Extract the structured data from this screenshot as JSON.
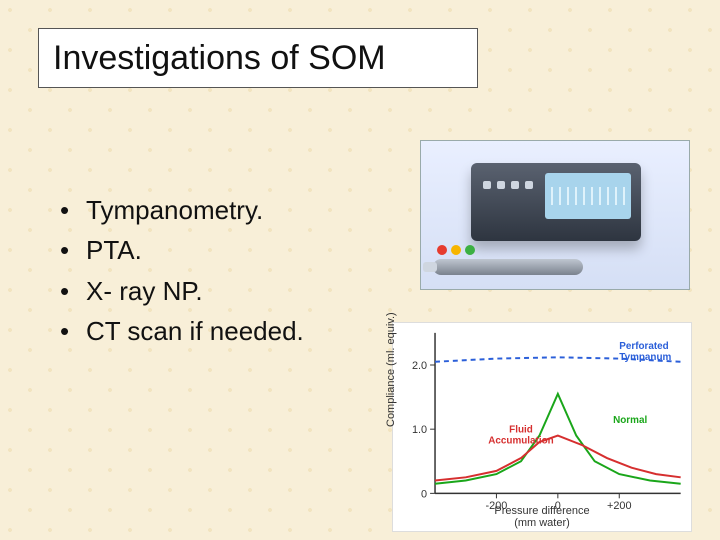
{
  "title": "Investigations of SOM",
  "bullets": [
    "Tympanometry.",
    "PTA.",
    "X- ray NP.",
    "CT scan if needed."
  ],
  "device": {
    "tip_colors": [
      "#e63b2e",
      "#f7b500",
      "#3cb043"
    ]
  },
  "chart": {
    "type": "line",
    "xlabel": "Pressure difference\n(mm water)",
    "ylabel": "Compliance (ml. equiv.)",
    "xlim": [
      -400,
      400
    ],
    "ylim": [
      0,
      2.5
    ],
    "xticks": [
      -200,
      0,
      200
    ],
    "yticks": [
      0,
      1.0,
      2.0
    ],
    "xtick_labels": [
      "-200",
      "0",
      "+200"
    ],
    "ytick_labels": [
      "0",
      "1.0",
      "2.0"
    ],
    "background_color": "#ffffff",
    "axis_color": "#333333",
    "label_fontsize": 11,
    "series": [
      {
        "name": "Normal",
        "color": "#1aa61a",
        "width": 2,
        "points": [
          [
            -400,
            0.15
          ],
          [
            -300,
            0.2
          ],
          [
            -200,
            0.3
          ],
          [
            -120,
            0.5
          ],
          [
            -60,
            0.9
          ],
          [
            0,
            1.55
          ],
          [
            60,
            0.9
          ],
          [
            120,
            0.5
          ],
          [
            200,
            0.3
          ],
          [
            300,
            0.2
          ],
          [
            400,
            0.15
          ]
        ],
        "label_pos": [
          180,
          1.1
        ]
      },
      {
        "name": "Fluid Accumulation",
        "color": "#d62f2f",
        "width": 2,
        "points": [
          [
            -400,
            0.2
          ],
          [
            -300,
            0.25
          ],
          [
            -200,
            0.35
          ],
          [
            -120,
            0.55
          ],
          [
            -60,
            0.8
          ],
          [
            0,
            0.9
          ],
          [
            80,
            0.75
          ],
          [
            160,
            0.55
          ],
          [
            240,
            0.4
          ],
          [
            320,
            0.3
          ],
          [
            400,
            0.25
          ]
        ],
        "label_pos": [
          -120,
          0.95
        ]
      },
      {
        "name": "Perforated Tympanum",
        "color": "#2b5fd9",
        "width": 2,
        "dash": "5,4",
        "points": [
          [
            -400,
            2.05
          ],
          [
            -200,
            2.1
          ],
          [
            0,
            2.12
          ],
          [
            200,
            2.1
          ],
          [
            400,
            2.05
          ]
        ],
        "label_pos": [
          200,
          2.25
        ]
      }
    ]
  }
}
